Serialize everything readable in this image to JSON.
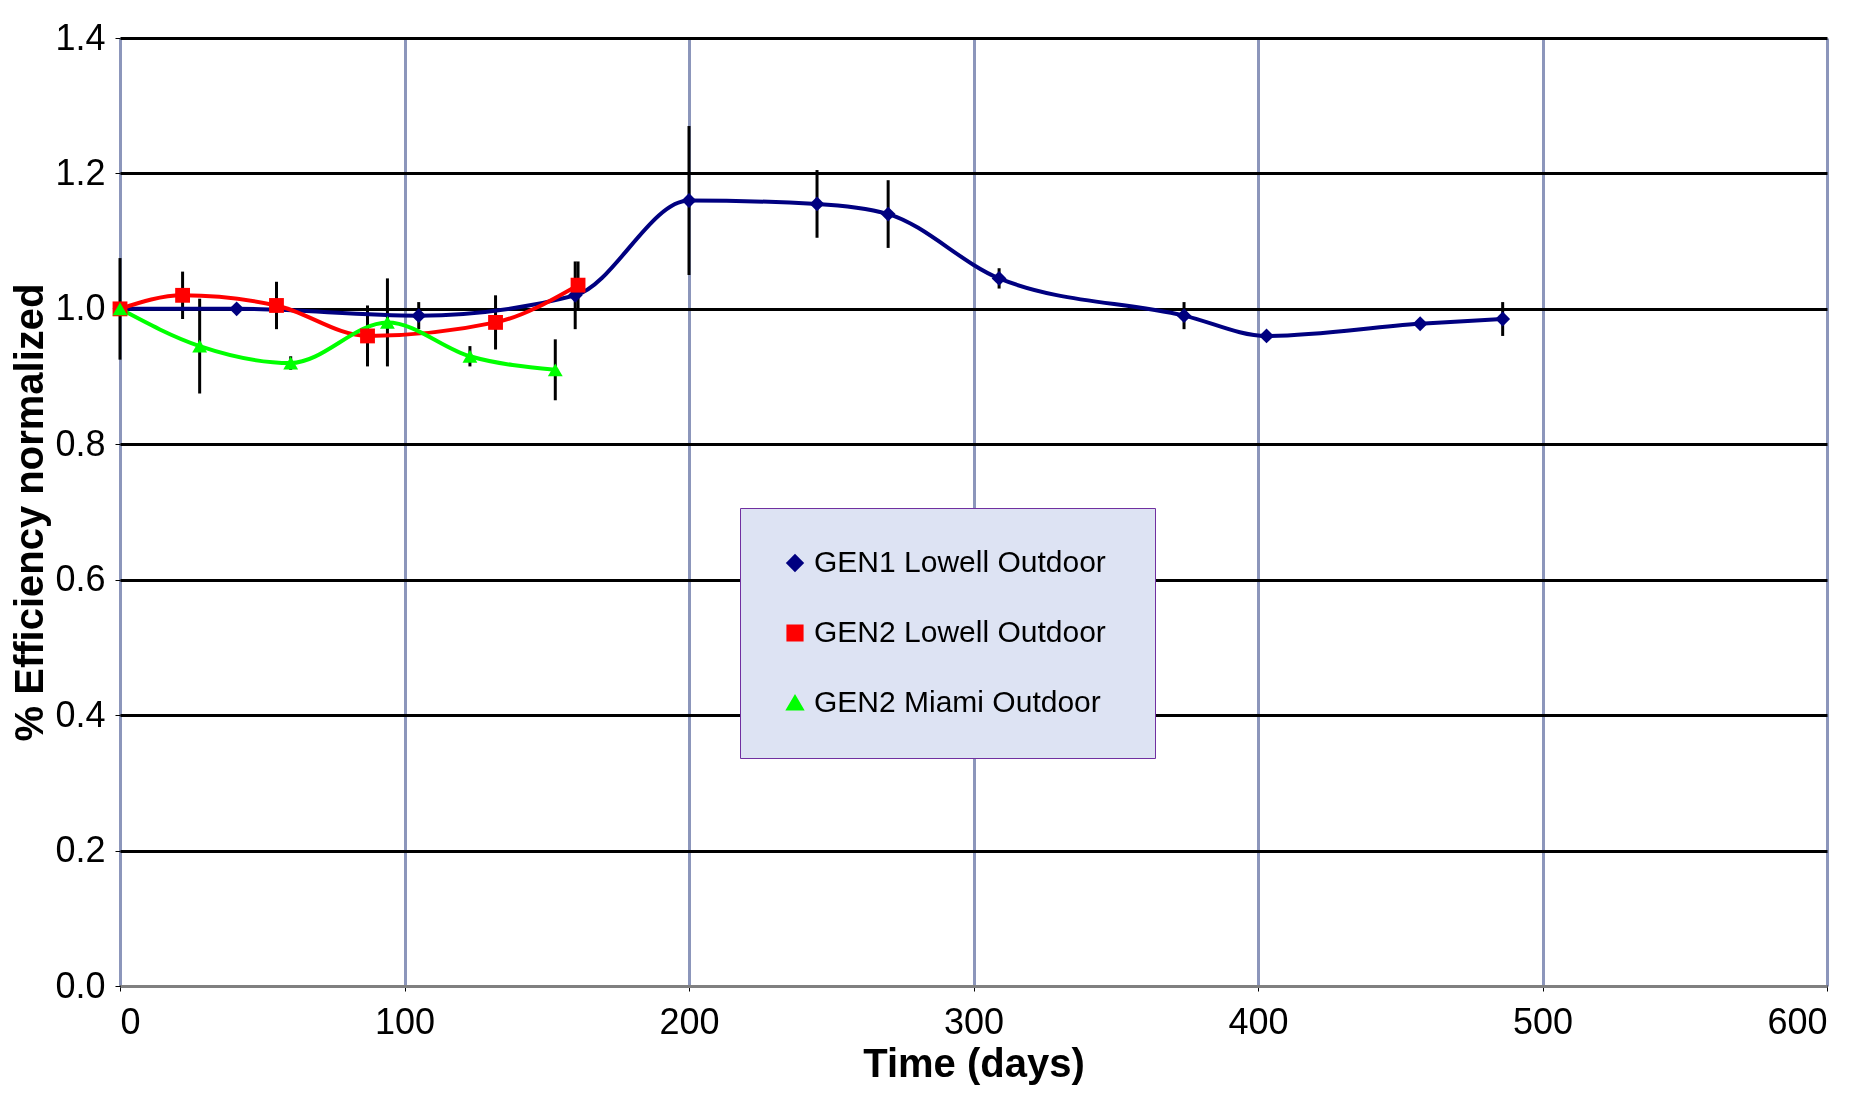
{
  "chart_data": {
    "type": "line",
    "xlabel": "Time (days)",
    "ylabel": "% Efficiency normalized",
    "xlim": [
      0,
      600
    ],
    "xticks": [
      0,
      100,
      200,
      300,
      400,
      500,
      600
    ],
    "ylim": [
      0,
      1.4
    ],
    "yticks": [
      {
        "value": 0,
        "label": "0.0"
      },
      0.2,
      0.4,
      0.6,
      0.8,
      {
        "value": 1,
        "label": "1.0"
      },
      1.2,
      1.4
    ],
    "grid": true,
    "legend": "bottom",
    "line_style": "solid",
    "series": [
      {
        "name": "GEN1 Lowell  Outdoor",
        "color": "#000080",
        "marker": "diamond",
        "x": [
          0,
          41,
          105,
          160,
          200,
          245,
          270,
          309,
          374,
          403,
          457,
          486
        ],
        "values": [
          1.0,
          1.0,
          0.99,
          1.02,
          1.16,
          1.155,
          1.14,
          1.045,
          0.99,
          0.96,
          0.978,
          0.985
        ],
        "errors": [
          0.075,
          null,
          0.02,
          0.05,
          0.11,
          0.05,
          0.05,
          0.015,
          0.02,
          null,
          null,
          0.025
        ]
      },
      {
        "name": "GEN2 Lowell  Outdoor",
        "color": "#ff0000",
        "marker": "square",
        "x": [
          0,
          22,
          55,
          87,
          132,
          161
        ],
        "values": [
          1.0,
          1.02,
          1.005,
          0.96,
          0.98,
          1.035
        ],
        "errors": [
          null,
          0.035,
          0.035,
          0.045,
          0.04,
          0.035
        ]
      },
      {
        "name": "GEN2 Miami  Outdoor",
        "color": "#00ff00",
        "marker": "triangle",
        "x": [
          0,
          28,
          60,
          94,
          123,
          153
        ],
        "values": [
          1.0,
          0.945,
          0.92,
          0.98,
          0.93,
          0.91
        ],
        "errors": [
          null,
          0.07,
          0.01,
          0.065,
          0.015,
          0.045
        ]
      }
    ]
  }
}
